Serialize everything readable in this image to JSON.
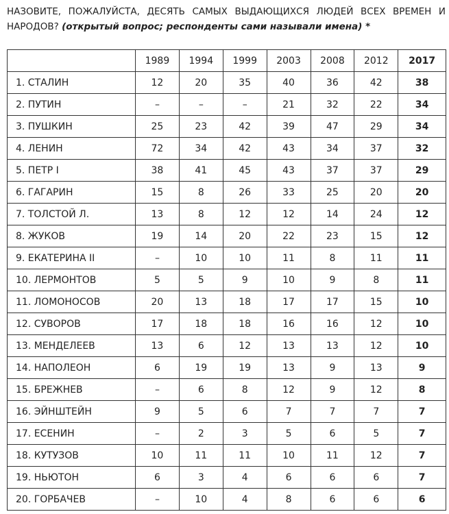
{
  "header": {
    "question": "НАЗОВИТЕ, ПОЖАЛУЙСТА, ДЕСЯТЬ САМЫХ ВЫДАЮЩИХСЯ ЛЮДЕЙ ВСЕХ ВРЕМЕН И НАРОДОВ?",
    "note": "(открытый вопрос; респонденты сами называли имена) *"
  },
  "table": {
    "columns": [
      1989,
      1994,
      1999,
      2003,
      2008,
      2012,
      2017
    ],
    "rows": [
      {
        "name": "1. СТАЛИН",
        "values": [
          12,
          20,
          35,
          40,
          36,
          42,
          38
        ]
      },
      {
        "name": "2. ПУТИН",
        "values": [
          "–",
          "–",
          "–",
          21,
          32,
          22,
          34
        ]
      },
      {
        "name": "3. ПУШКИН",
        "values": [
          25,
          23,
          42,
          39,
          47,
          29,
          34
        ]
      },
      {
        "name": "4. ЛЕНИН",
        "values": [
          72,
          34,
          42,
          43,
          34,
          37,
          32
        ]
      },
      {
        "name": "5. ПЕТР I",
        "values": [
          38,
          41,
          45,
          43,
          37,
          37,
          29
        ]
      },
      {
        "name": "6. ГАГАРИН",
        "values": [
          15,
          8,
          26,
          33,
          25,
          20,
          20
        ]
      },
      {
        "name": "7. ТОЛСТОЙ Л.",
        "values": [
          13,
          8,
          12,
          12,
          14,
          24,
          12
        ]
      },
      {
        "name": "8. ЖУКОВ",
        "values": [
          19,
          14,
          20,
          22,
          23,
          15,
          12
        ]
      },
      {
        "name": "9. ЕКАТЕРИНА II",
        "values": [
          "–",
          10,
          10,
          11,
          8,
          11,
          11
        ]
      },
      {
        "name": "10. ЛЕРМОНТОВ",
        "values": [
          5,
          5,
          9,
          10,
          9,
          8,
          11
        ]
      },
      {
        "name": "11. ЛОМОНОСОВ",
        "values": [
          20,
          13,
          18,
          17,
          17,
          15,
          10
        ]
      },
      {
        "name": "12. СУВОРОВ",
        "values": [
          17,
          18,
          18,
          16,
          16,
          12,
          10
        ]
      },
      {
        "name": "13. МЕНДЕЛЕЕВ",
        "values": [
          13,
          6,
          12,
          13,
          13,
          12,
          10
        ]
      },
      {
        "name": "14. НАПОЛЕОН",
        "values": [
          6,
          19,
          19,
          13,
          9,
          13,
          9
        ]
      },
      {
        "name": "15. БРЕЖНЕВ",
        "values": [
          "–",
          6,
          8,
          12,
          9,
          12,
          8
        ]
      },
      {
        "name": "16. ЭЙНШТЕЙН",
        "values": [
          9,
          5,
          6,
          7,
          7,
          7,
          7
        ]
      },
      {
        "name": "17. ЕСЕНИН",
        "values": [
          "–",
          2,
          3,
          5,
          6,
          5,
          7
        ]
      },
      {
        "name": "18. КУТУЗОВ",
        "values": [
          10,
          11,
          11,
          10,
          11,
          12,
          7
        ]
      },
      {
        "name": "19. НЬЮТОН",
        "values": [
          6,
          3,
          4,
          6,
          6,
          6,
          7
        ]
      },
      {
        "name": "20. ГОРБАЧЕВ",
        "values": [
          "–",
          10,
          4,
          8,
          6,
          6,
          6
        ]
      }
    ]
  }
}
